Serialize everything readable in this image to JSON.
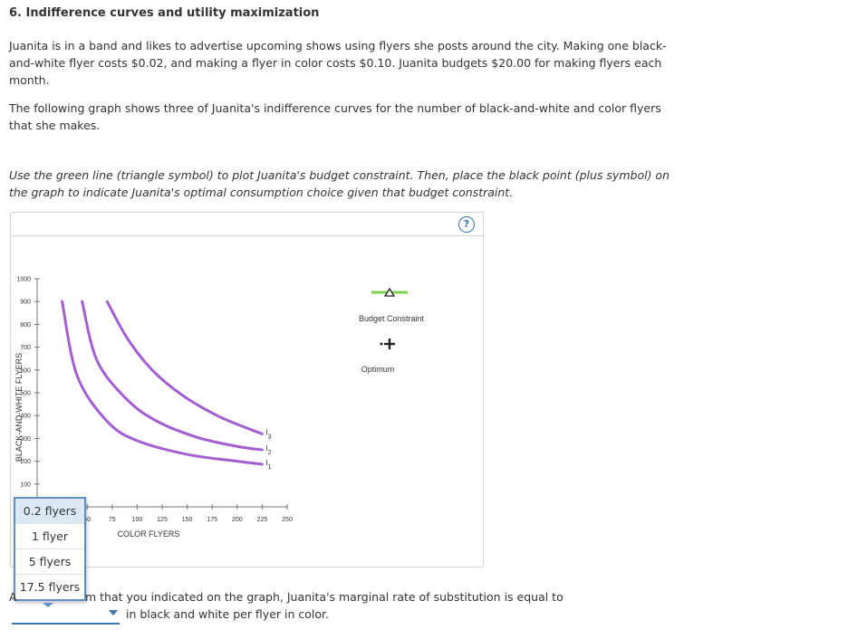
{
  "question": {
    "title": "6. Indifference curves and utility maximization",
    "intro": "Juanita is in a band and likes to advertise upcoming shows using flyers she posts around the city. Making one black-and-white flyer costs $0.02, and making a flyer in color costs $0.10. Juanita budgets $20.00 for making flyers each month.",
    "graph_intro": "The following graph shows three of Juanita's indifference curves for the number of black-and-white and color flyers that she makes.",
    "instructions": "Use the green line (triangle symbol) to plot Juanita's budget constraint. Then, place the black point (plus symbol) on the graph to indicate Juanita's optimal consumption choice given that budget constraint."
  },
  "panel": {
    "help_label": "?"
  },
  "chart_data": {
    "type": "line",
    "xlabel": "COLOR FLYERS",
    "ylabel": "BLACK-AND-WHITE FLYERS",
    "xlim": [
      0,
      250
    ],
    "ylim": [
      0,
      1000
    ],
    "x_ticks": [
      50,
      75,
      100,
      125,
      150,
      175,
      200,
      225,
      250
    ],
    "y_ticks": [
      100,
      200,
      300,
      400,
      500,
      600,
      700,
      800,
      900,
      1000
    ],
    "curve_color": "#a35fd2",
    "series": [
      {
        "name": "I1",
        "label_main": "I",
        "label_sub": "1",
        "points": [
          [
            25,
            900
          ],
          [
            40,
            575
          ],
          [
            70,
            375
          ],
          [
            100,
            290
          ],
          [
            150,
            230
          ],
          [
            200,
            200
          ],
          [
            225,
            187
          ]
        ]
      },
      {
        "name": "I2",
        "label_main": "I",
        "label_sub": "2",
        "points": [
          [
            45,
            900
          ],
          [
            60,
            640
          ],
          [
            90,
            470
          ],
          [
            120,
            375
          ],
          [
            160,
            305
          ],
          [
            200,
            265
          ],
          [
            225,
            250
          ]
        ]
      },
      {
        "name": "I3",
        "label_main": "I",
        "label_sub": "3",
        "points": [
          [
            70,
            900
          ],
          [
            90,
            740
          ],
          [
            115,
            600
          ],
          [
            145,
            490
          ],
          [
            180,
            400
          ],
          [
            210,
            345
          ],
          [
            225,
            320
          ]
        ]
      }
    ]
  },
  "legend": {
    "budget_label": "Budget Constraint",
    "budget_color": "#7fd14f",
    "optimum_label": "Optimum"
  },
  "dropdown": {
    "options": [
      "0.2 flyers",
      "1 flyer",
      "5 flyers",
      "17.5 flyers"
    ],
    "selected_index": 0
  },
  "mrs": {
    "prefix": "A",
    "line1": "m that you indicated on the graph, Juanita's marginal rate of substitution is equal to",
    "line2": "in black and white per flyer in color."
  }
}
